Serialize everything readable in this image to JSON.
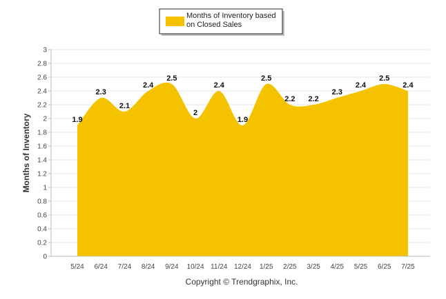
{
  "chart_data": {
    "type": "area",
    "categories": [
      "5/24",
      "6/24",
      "7/24",
      "8/24",
      "9/24",
      "10/24",
      "11/24",
      "12/24",
      "1/25",
      "2/25",
      "3/25",
      "4/25",
      "5/25",
      "6/25",
      "7/25"
    ],
    "series": [
      {
        "name": "Months of Inventory based on Closed Sales",
        "values": [
          1.9,
          2.3,
          2.1,
          2.4,
          2.5,
          2.0,
          2.4,
          1.9,
          2.5,
          2.2,
          2.2,
          2.3,
          2.4,
          2.5,
          2.4
        ],
        "data_labels": [
          "1.9",
          "2.3",
          "2.1",
          "2.4",
          "2.5",
          "2",
          "2.4",
          "1.9",
          "2.5",
          "2.2",
          "2.2",
          "2.3",
          "2.4",
          "2.5",
          "2.4"
        ],
        "color": "#F5C200"
      }
    ],
    "legend": {
      "line1": "Months of Inventory based",
      "line2": "on Closed Sales",
      "position": "top-center"
    },
    "ylabel": "Months of Inventory",
    "xlabel": "",
    "ylim": [
      0,
      3
    ],
    "yticks": [
      "0",
      "0.2",
      "0.4",
      "0.6",
      "0.8",
      "1",
      "1.2",
      "1.4",
      "1.6",
      "1.8",
      "2",
      "2.2",
      "2.4",
      "2.6",
      "2.8",
      "3"
    ],
    "grid": true,
    "grid_color": "#e6e6e6",
    "axis_color": "#bbbbbb"
  },
  "footer": {
    "copyright": "Copyright © Trendgraphix, Inc."
  }
}
